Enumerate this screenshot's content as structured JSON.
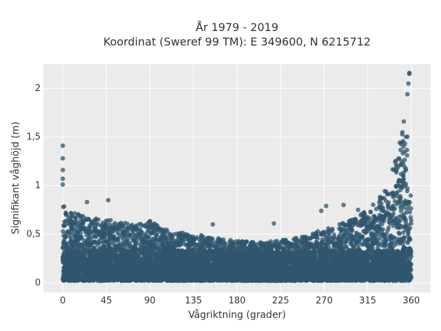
{
  "chart_data": {
    "type": "scatter",
    "title_line1": "År 1979 - 2019",
    "title_line2": "Koordinat (Sweref 99 TM): E 349600, N 6215712",
    "xlabel": "Vågriktning (grader)",
    "ylabel": "Signifikant våghöjd (m)",
    "xlim": [
      -20,
      380
    ],
    "ylim": [
      -0.1,
      2.25
    ],
    "x_ticks": [
      0,
      45,
      90,
      135,
      180,
      225,
      270,
      315,
      360
    ],
    "x_tick_labels": [
      "0",
      "45",
      "90",
      "135",
      "180",
      "225",
      "270",
      "315",
      "360"
    ],
    "y_ticks": [
      0,
      0.5,
      1,
      1.5,
      2
    ],
    "y_tick_labels": [
      "0",
      "0,5",
      "1",
      "1,5",
      "2"
    ],
    "grid": true,
    "marker_color": "#2f566e",
    "plot_background": "#ebebeb",
    "envelope": {
      "direction": [
        0,
        10,
        20,
        30,
        45,
        60,
        75,
        90,
        105,
        120,
        135,
        150,
        165,
        180,
        195,
        210,
        225,
        240,
        255,
        270,
        285,
        300,
        315,
        325,
        335,
        340,
        345,
        350,
        355,
        360
      ],
      "max_height": [
        0.82,
        0.72,
        0.7,
        0.68,
        0.66,
        0.62,
        0.6,
        0.64,
        0.55,
        0.52,
        0.5,
        0.48,
        0.45,
        0.43,
        0.42,
        0.42,
        0.44,
        0.46,
        0.5,
        0.55,
        0.6,
        0.66,
        0.75,
        0.85,
        1.0,
        1.15,
        1.35,
        1.55,
        1.8,
        0.8
      ]
    },
    "outliers": [
      {
        "x": 0,
        "y": 1.41
      },
      {
        "x": 0,
        "y": 1.28
      },
      {
        "x": 0,
        "y": 1.16
      },
      {
        "x": 0,
        "y": 1.07
      },
      {
        "x": 0,
        "y": 1.01
      },
      {
        "x": 47,
        "y": 0.85
      },
      {
        "x": 25,
        "y": 0.83
      },
      {
        "x": 272,
        "y": 0.79
      },
      {
        "x": 290,
        "y": 0.8
      },
      {
        "x": 267,
        "y": 0.74
      },
      {
        "x": 305,
        "y": 0.75
      },
      {
        "x": 218,
        "y": 0.61
      },
      {
        "x": 155,
        "y": 0.6
      },
      {
        "x": 350,
        "y": 1.25
      },
      {
        "x": 352,
        "y": 1.4
      },
      {
        "x": 356,
        "y": 1.94
      },
      {
        "x": 357,
        "y": 2.05
      },
      {
        "x": 358,
        "y": 2.16
      },
      {
        "x": 358,
        "y": 2.15
      }
    ]
  }
}
